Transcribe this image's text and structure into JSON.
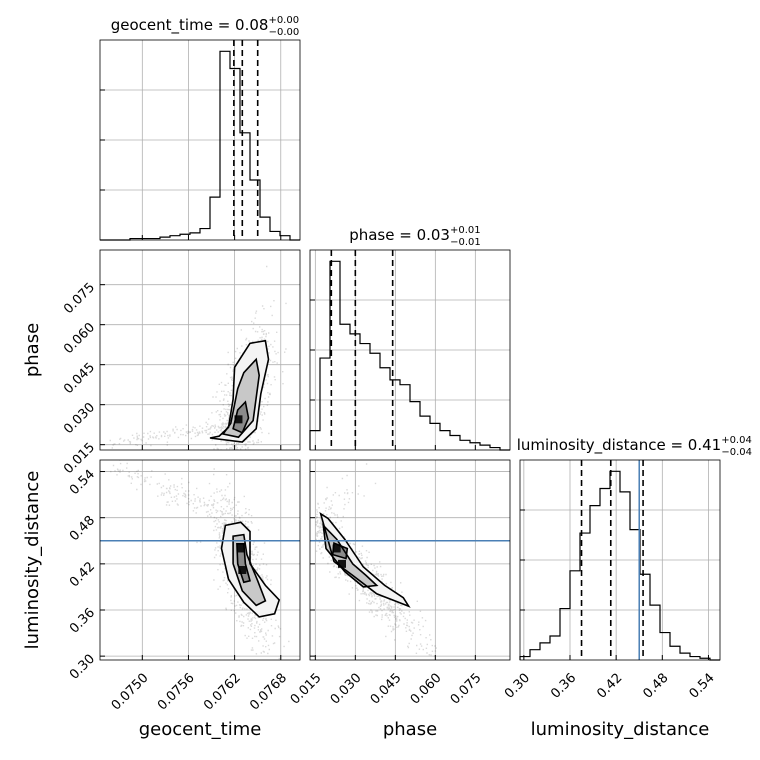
{
  "chart_data": {
    "type": "corner",
    "parameters": [
      {
        "name": "geocent_time",
        "range": [
          0.07445,
          0.07705
        ],
        "ticks": [
          0.075,
          0.0756,
          0.0762,
          0.0768
        ],
        "tick_labels": [
          "0.0750",
          "0.0756",
          "0.0762",
          "0.0768"
        ],
        "quantiles": [
          0.07619,
          0.0763,
          0.0765
        ],
        "truth": null,
        "title": {
          "prefix": "geocent_time = 0.08",
          "plus": "+0.00",
          "minus": "−0.00"
        },
        "hist": {
          "edges": [
            0.07445,
            0.07458,
            0.07471,
            0.07484,
            0.07497,
            0.0751,
            0.07523,
            0.07536,
            0.07549,
            0.07562,
            0.07575,
            0.07588,
            0.07601,
            0.07614,
            0.07627,
            0.0764,
            0.07653,
            0.07666,
            0.07679,
            0.07692,
            0.07705
          ],
          "counts": [
            0,
            0,
            0,
            1,
            1,
            1,
            2,
            3,
            4,
            5,
            8,
            30,
            132,
            120,
            75,
            42,
            16,
            6,
            3,
            0
          ]
        }
      },
      {
        "name": "phase",
        "range": [
          0.013,
          0.088
        ],
        "ticks": [
          0.015,
          0.03,
          0.045,
          0.06,
          0.075
        ],
        "tick_labels": [
          "0.015",
          "0.030",
          "0.045",
          "0.060",
          "0.075"
        ],
        "quantiles": [
          0.021,
          0.03,
          0.044
        ],
        "truth": null,
        "title": {
          "prefix": "phase = 0.03",
          "plus": "+0.01",
          "minus": "−0.01"
        },
        "hist": {
          "edges": [
            0.013,
            0.01675,
            0.0205,
            0.02425,
            0.028,
            0.03175,
            0.0355,
            0.03925,
            0.043,
            0.04675,
            0.0505,
            0.05425,
            0.058,
            0.06175,
            0.0655,
            0.06925,
            0.073,
            0.07675,
            0.0805,
            0.08425,
            0.088
          ],
          "counts": [
            8,
            38,
            78,
            52,
            48,
            44,
            40,
            34,
            29,
            27,
            20,
            14,
            11,
            8,
            6,
            4,
            3,
            2,
            1,
            0
          ]
        }
      },
      {
        "name": "luminosity_distance",
        "range": [
          0.295,
          0.555
        ],
        "ticks": [
          0.3,
          0.36,
          0.42,
          0.48,
          0.54
        ],
        "tick_labels": [
          "0.30",
          "0.36",
          "0.42",
          "0.48",
          "0.54"
        ],
        "quantiles": [
          0.375,
          0.413,
          0.455
        ],
        "truth": 0.45,
        "title": {
          "prefix": "luminosity_distance = 0.41",
          "plus": "+0.04",
          "minus": "−0.04"
        },
        "hist": {
          "edges": [
            0.295,
            0.308,
            0.321,
            0.334,
            0.347,
            0.36,
            0.373,
            0.386,
            0.399,
            0.412,
            0.425,
            0.438,
            0.451,
            0.464,
            0.477,
            0.49,
            0.503,
            0.516,
            0.529,
            0.542,
            0.555
          ],
          "counts": [
            2,
            6,
            10,
            14,
            30,
            52,
            74,
            90,
            100,
            110,
            98,
            76,
            50,
            32,
            16,
            8,
            4,
            2,
            1,
            0
          ]
        }
      }
    ],
    "pairs": [
      {
        "x": "geocent_time",
        "y": "phase",
        "correlation": 0.55,
        "contours": [
          [
            [
              0.07588,
              0.0175
            ],
            [
              0.076,
              0.0182
            ],
            [
              0.07612,
              0.0215
            ],
            [
              0.07618,
              0.032
            ],
            [
              0.0762,
              0.044
            ],
            [
              0.0764,
              0.053
            ],
            [
              0.0766,
              0.054
            ],
            [
              0.07664,
              0.047
            ],
            [
              0.07654,
              0.034
            ],
            [
              0.07648,
              0.021
            ],
            [
              0.0763,
              0.016
            ],
            [
              0.07588,
              0.0175
            ]
          ],
          [
            [
              0.07605,
              0.019
            ],
            [
              0.07615,
              0.023
            ],
            [
              0.07624,
              0.036
            ],
            [
              0.07632,
              0.042
            ],
            [
              0.07648,
              0.047
            ],
            [
              0.07652,
              0.041
            ],
            [
              0.07644,
              0.024
            ],
            [
              0.07625,
              0.0178
            ],
            [
              0.07605,
              0.019
            ]
          ],
          [
            [
              0.07618,
              0.021
            ],
            [
              0.07624,
              0.028
            ],
            [
              0.07634,
              0.031
            ],
            [
              0.07638,
              0.025
            ],
            [
              0.0763,
              0.0195
            ],
            [
              0.07618,
              0.021
            ]
          ]
        ],
        "cores": [
          [
            0.07625,
            0.0245
          ]
        ]
      },
      {
        "x": "geocent_time",
        "y": "luminosity_distance",
        "correlation": -0.7,
        "contours": [
          [
            [
              0.07608,
              0.47
            ],
            [
              0.07628,
              0.474
            ],
            [
              0.0764,
              0.462
            ],
            [
              0.0764,
              0.42
            ],
            [
              0.0766,
              0.392
            ],
            [
              0.07678,
              0.373
            ],
            [
              0.07672,
              0.355
            ],
            [
              0.07652,
              0.351
            ],
            [
              0.07632,
              0.37
            ],
            [
              0.07612,
              0.4
            ],
            [
              0.07603,
              0.44
            ],
            [
              0.07608,
              0.47
            ]
          ],
          [
            [
              0.07618,
              0.456
            ],
            [
              0.07632,
              0.458
            ],
            [
              0.07636,
              0.432
            ],
            [
              0.0765,
              0.398
            ],
            [
              0.0766,
              0.372
            ],
            [
              0.07648,
              0.366
            ],
            [
              0.0763,
              0.385
            ],
            [
              0.07618,
              0.42
            ],
            [
              0.07618,
              0.456
            ]
          ],
          [
            [
              0.07623,
              0.446
            ],
            [
              0.07632,
              0.446
            ],
            [
              0.07634,
              0.42
            ],
            [
              0.0764,
              0.398
            ],
            [
              0.07632,
              0.396
            ],
            [
              0.07624,
              0.42
            ],
            [
              0.07623,
              0.446
            ]
          ]
        ],
        "cores": [
          [
            0.07628,
            0.44
          ],
          [
            0.0763,
            0.412
          ]
        ]
      },
      {
        "x": "phase",
        "y": "luminosity_distance",
        "correlation": -0.95,
        "contours": [
          [
            [
              0.017,
              0.485
            ],
            [
              0.0198,
              0.479
            ],
            [
              0.026,
              0.452
            ],
            [
              0.033,
              0.416
            ],
            [
              0.041,
              0.392
            ],
            [
              0.048,
              0.376
            ],
            [
              0.05,
              0.365
            ],
            [
              0.044,
              0.373
            ],
            [
              0.038,
              0.381
            ],
            [
              0.029,
              0.405
            ],
            [
              0.022,
              0.423
            ],
            [
              0.017,
              0.485
            ]
          ],
          [
            [
              0.018,
              0.47
            ],
            [
              0.023,
              0.452
            ],
            [
              0.029,
              0.42
            ],
            [
              0.034,
              0.405
            ],
            [
              0.038,
              0.392
            ],
            [
              0.033,
              0.39
            ],
            [
              0.026,
              0.41
            ],
            [
              0.019,
              0.44
            ],
            [
              0.018,
              0.47
            ]
          ],
          [
            [
              0.022,
              0.447
            ],
            [
              0.027,
              0.44
            ],
            [
              0.0265,
              0.427
            ],
            [
              0.0215,
              0.432
            ],
            [
              0.022,
              0.447
            ]
          ]
        ],
        "cores": [
          [
            0.023,
            0.44
          ],
          [
            0.025,
            0.42
          ]
        ]
      }
    ]
  }
}
